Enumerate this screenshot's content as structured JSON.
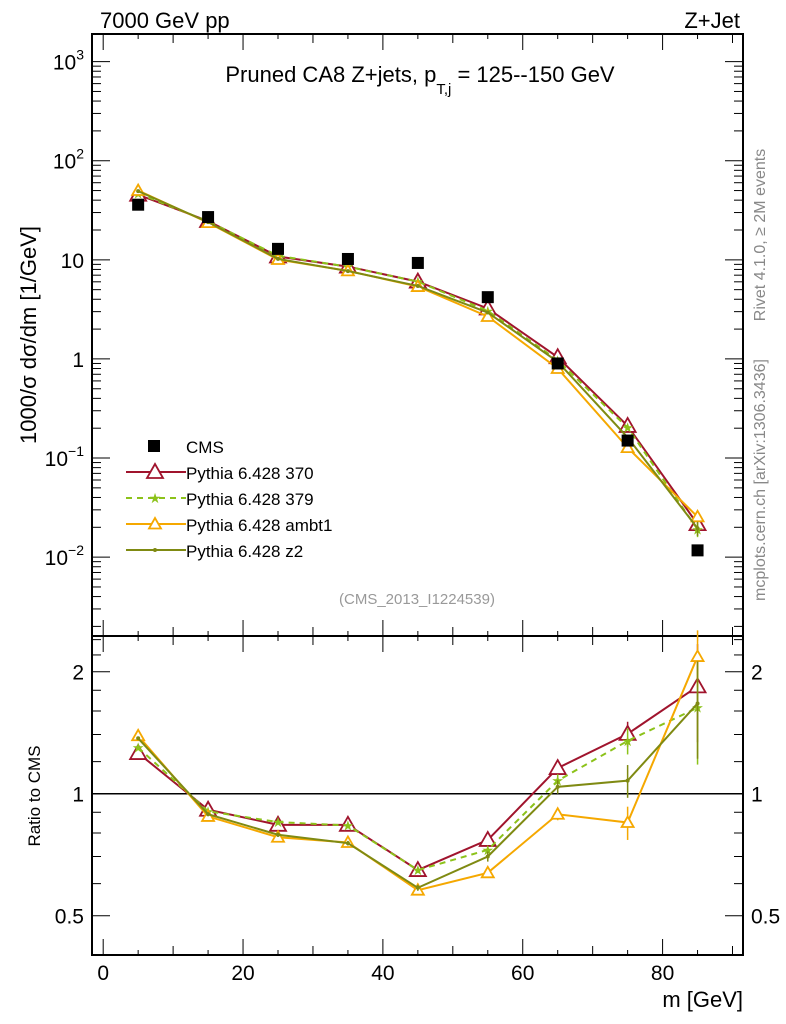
{
  "header": {
    "left": "7000 GeV pp",
    "right": "Z+Jet"
  },
  "side_labels": {
    "top": "Rivet 4.1.0, ≥ 2M events",
    "bottom": "mcplots.cern.ch [arXiv:1306.3436]"
  },
  "watermark": "(CMS_2013_I1224539)",
  "chart_data": [
    {
      "type": "line",
      "panel": "main",
      "title": "Pruned CA8 Z+jets, p",
      "title_sub": "T,j",
      "title_tail": " = 125--150 GeV",
      "ylabel": "1000/σ  dσ/dm [1/GeV]",
      "yscale": "log",
      "ylim": [
        0.0016,
        1900
      ],
      "xlim": [
        -1.6,
        91.5
      ],
      "yticks": [
        {
          "v": 1000,
          "base": "10",
          "exp": "3"
        },
        {
          "v": 100,
          "base": "10",
          "exp": "2"
        },
        {
          "v": 10,
          "base": "10",
          "exp": ""
        },
        {
          "v": 1,
          "base": "1",
          "exp": ""
        },
        {
          "v": 0.1,
          "base": "10",
          "exp": "−1"
        },
        {
          "v": 0.01,
          "base": "10",
          "exp": "−2"
        }
      ],
      "legend_position": "bottom-left",
      "x": [
        5,
        15,
        25,
        35,
        45,
        55,
        65,
        75,
        85
      ],
      "data": {
        "name": "CMS",
        "values": [
          36,
          27,
          12.9,
          10.2,
          9.3,
          4.2,
          0.9,
          0.15,
          0.0117
        ]
      },
      "series": [
        {
          "name": "Pythia 6.428 370",
          "color": "#a0142d",
          "dash": "",
          "marker": "triangle-open",
          "ratio": [
            1.26,
            0.913,
            0.838,
            0.838,
            0.648,
            0.769,
            1.157,
            1.405,
            1.84
          ],
          "ratio_err": [
            0.01,
            0.01,
            0.01,
            0.01,
            0.01,
            0.015,
            0.03,
            0.1,
            0.5
          ]
        },
        {
          "name": "Pythia 6.428 379",
          "color": "#8cc21a",
          "dash": "6,5",
          "marker": "star",
          "ratio": [
            1.3,
            0.905,
            0.851,
            0.835,
            0.648,
            0.727,
            1.077,
            1.35,
            1.63
          ],
          "ratio_err": [
            0.01,
            0.01,
            0.01,
            0.01,
            0.01,
            0.015,
            0.04,
            0.1,
            0.45
          ]
        },
        {
          "name": "Pythia 6.428 ambt1",
          "color": "#f5a800",
          "dash": "",
          "marker": "triangle-open-small",
          "ratio": [
            1.39,
            0.879,
            0.781,
            0.758,
            0.578,
            0.638,
            0.89,
            0.849,
            2.18
          ],
          "ratio_err": [
            0.01,
            0.01,
            0.01,
            0.01,
            0.01,
            0.015,
            0.03,
            0.08,
            0.35
          ]
        },
        {
          "name": "Pythia 6.428 z2",
          "color": "#7f8a12",
          "dash": "",
          "marker": "dot",
          "ratio": [
            1.37,
            0.89,
            0.792,
            0.755,
            0.586,
            0.7,
            1.04,
            1.077,
            1.67
          ],
          "ratio_err": [
            0.01,
            0.01,
            0.01,
            0.01,
            0.01,
            0.02,
            0.04,
            0.1,
            0.45
          ]
        }
      ]
    },
    {
      "type": "line",
      "panel": "ratio",
      "ylabel": "Ratio to CMS",
      "xlabel": "m [GeV]",
      "yscale": "log",
      "ylim": [
        0.4,
        2.45
      ],
      "yticks": [
        {
          "v": 0.5,
          "label": "0.5"
        },
        {
          "v": 1,
          "label": "1"
        },
        {
          "v": 2,
          "label": "2"
        }
      ],
      "xticks": [
        0,
        20,
        40,
        60,
        80
      ],
      "reference": 1
    }
  ]
}
